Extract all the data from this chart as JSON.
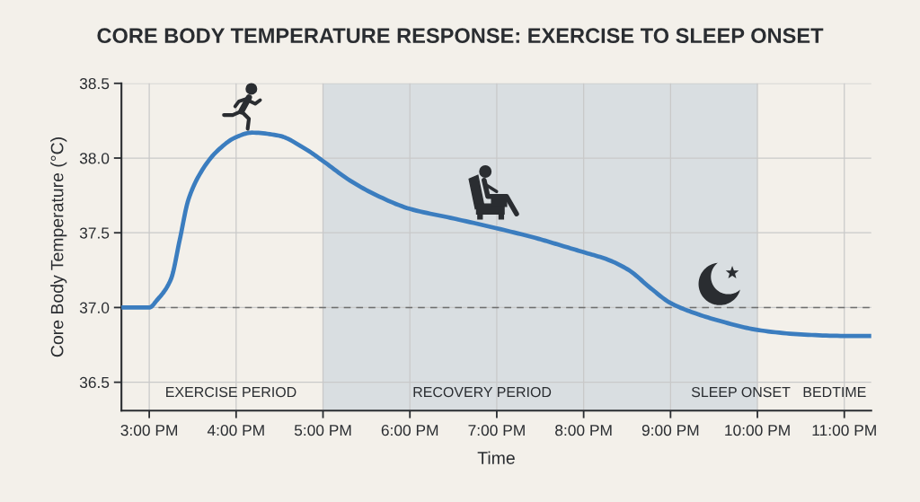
{
  "chart_data": {
    "type": "line",
    "title": "CORE BODY TEMPERATURE RESPONSE: EXERCISE TO SLEEP ONSET",
    "xlabel": "Time",
    "ylabel": "Core Body Temperature (°C)",
    "series": [
      {
        "color": "#3b7dbf",
        "x": [
          14.68,
          15.0,
          15.09,
          15.25,
          15.35,
          15.45,
          15.61,
          15.77,
          16.0,
          16.18,
          16.49,
          16.8,
          17.0,
          17.31,
          17.62,
          18.0,
          18.47,
          19.0,
          19.48,
          19.77,
          20.0,
          20.28,
          20.52,
          20.77,
          21.0,
          21.29,
          21.63,
          22.0,
          22.5,
          23.0,
          23.31
        ],
        "values": [
          37.0,
          37.0,
          37.05,
          37.19,
          37.45,
          37.72,
          37.92,
          38.04,
          38.14,
          38.17,
          38.15,
          38.06,
          37.98,
          37.85,
          37.75,
          37.66,
          37.6,
          37.53,
          37.46,
          37.41,
          37.37,
          37.32,
          37.25,
          37.13,
          37.03,
          36.96,
          36.9,
          36.85,
          36.82,
          36.81,
          36.81
        ]
      }
    ],
    "xlim": [
      14.68,
      23.31
    ],
    "xticks": [
      {
        "value": 15,
        "label": "3:00 PM"
      },
      {
        "value": 16,
        "label": "4:00 PM"
      },
      {
        "value": 17,
        "label": "5:00 PM"
      },
      {
        "value": 18,
        "label": "6:00 PM"
      },
      {
        "value": 19,
        "label": "7:00 PM"
      },
      {
        "value": 20,
        "label": "8:00 PM"
      },
      {
        "value": 21,
        "label": "9:00 PM"
      },
      {
        "value": 22,
        "label": "10:00 PM"
      },
      {
        "value": 23,
        "label": "11:00 PM"
      }
    ],
    "ylim": [
      36.31,
      38.5
    ],
    "yticks": [
      36.5,
      {
        "value": 37,
        "label": "37.0"
      },
      37.5,
      {
        "value": 38,
        "label": "38.0"
      },
      38.5
    ],
    "grid": true,
    "ref_lines": [
      {
        "axis": "y",
        "value": 37.0,
        "color": "#6e6e6e",
        "line_style": "dashed"
      }
    ],
    "bands": [
      {
        "axis": "x",
        "from": 17,
        "to": 22,
        "color": "#d9dee1"
      }
    ],
    "annotations": [
      "EXERCISE PERIOD",
      "RECOVERY PERIOD",
      "SLEEP ONSET",
      "BEDTIME"
    ]
  }
}
